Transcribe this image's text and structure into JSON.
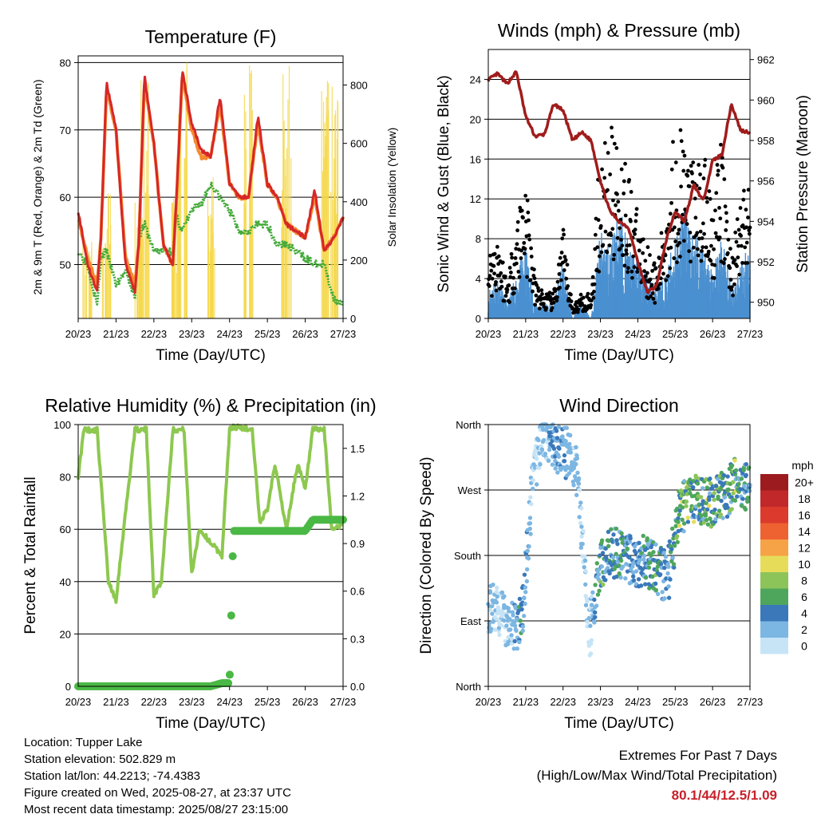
{
  "x_ticks": [
    "20/23",
    "21/23",
    "22/23",
    "23/23",
    "24/23",
    "25/23",
    "26/23",
    "27/23"
  ],
  "x_label": "Time (Day/UTC)",
  "panels": {
    "temperature": {
      "title": "Temperature (F)",
      "left_label": "2m & 9m T (Red, Orange) & 2m Td (Green)",
      "right_label": "Solar Insolation (Yellow)",
      "left_ticks": [
        "50",
        "60",
        "70",
        "80"
      ],
      "right_ticks": [
        "0",
        "200",
        "400",
        "600",
        "800"
      ]
    },
    "winds": {
      "title": "Winds (mph) & Pressure (mb)",
      "left_label": "Sonic Wind & Gust (Blue, Black)",
      "right_label": "Station Pressure (Maroon)",
      "left_ticks": [
        "0",
        "4",
        "8",
        "12",
        "16",
        "20",
        "24"
      ],
      "right_ticks": [
        "950",
        "952",
        "954",
        "956",
        "958",
        "960",
        "962"
      ]
    },
    "humidity": {
      "title": "Relative Humidity (%) & Precipitation (in)",
      "left_label": "Percent & Total Rainfall",
      "left_ticks": [
        "0",
        "20",
        "40",
        "60",
        "80",
        "100"
      ],
      "right_ticks": [
        "0.0",
        "0.3",
        "0.6",
        "0.9",
        "1.2",
        "1.5"
      ]
    },
    "direction": {
      "title": "Wind Direction",
      "left_label": "Direction (Colored By Speed)",
      "left_ticks": [
        "North",
        "East",
        "South",
        "West",
        "North"
      ],
      "legend_title": "mph",
      "legend_labels": [
        "20+",
        "18",
        "16",
        "14",
        "12",
        "10",
        "8",
        "6",
        "4",
        "2",
        "0"
      ],
      "legend_colors": [
        "#9c1b1f",
        "#c0282a",
        "#db3a2c",
        "#ee6231",
        "#f6a246",
        "#e6dc5a",
        "#8cc45a",
        "#4ea65c",
        "#3a78ba",
        "#7cb6e2",
        "#c6e4f6"
      ]
    }
  },
  "info": {
    "location": "Location: Tupper Lake",
    "elevation": "Station elevation: 502.829 m",
    "latlon": "Station lat/lon: 44.2213; -74.4383",
    "created": "Figure created on Wed, 2025-08-27, at 23:37 UTC",
    "recent": "Most recent data timestamp: 2025/08/27 23:15:00"
  },
  "extremes": {
    "line1": "Extremes For Past 7 Days",
    "line2": "(High/Low/Max Wind/Total Precipitation)",
    "values": "80.1/44/12.5/1.09"
  },
  "chart_data": [
    {
      "type": "line",
      "title": "Temperature (F)",
      "xlabel": "Time (Day/UTC)",
      "ylabel": "2m & 9m T (Red, Orange) & 2m Td (Green)",
      "ylabel_right": "Solar Insolation (Yellow)",
      "x": [
        20.0,
        20.25,
        20.5,
        20.6,
        20.75,
        21.0,
        21.25,
        21.5,
        21.6,
        21.75,
        22.0,
        22.25,
        22.5,
        22.6,
        22.75,
        23.0,
        23.25,
        23.5,
        23.75,
        24.0,
        24.25,
        24.5,
        24.75,
        25.0,
        25.25,
        25.5,
        25.75,
        26.0,
        26.25,
        26.5,
        26.75,
        27.0
      ],
      "ylim": [
        42,
        81
      ],
      "ylim_right": [
        0,
        900
      ],
      "series": [
        {
          "name": "2m T",
          "color": "#d62728",
          "values": [
            58,
            50,
            46,
            54,
            77,
            70,
            50,
            46,
            53,
            78,
            68,
            53,
            50,
            60,
            79,
            71,
            67,
            66,
            75,
            62,
            60,
            60,
            72,
            62,
            60,
            56,
            55,
            54,
            61,
            52,
            54,
            57
          ]
        },
        {
          "name": "9m T",
          "color": "#f58a2e",
          "values": [
            57,
            51,
            47,
            54,
            76,
            70,
            51,
            47,
            53,
            77,
            68,
            53,
            50,
            60,
            78,
            70,
            66,
            66,
            74,
            62,
            60,
            60,
            71,
            62,
            60,
            56,
            55,
            54,
            60,
            52,
            54,
            57
          ]
        },
        {
          "name": "2m Td",
          "color": "#44aa3a",
          "values": [
            52,
            50,
            44,
            51,
            52,
            47,
            49,
            45,
            54,
            56,
            52,
            52,
            52,
            57,
            55,
            58,
            59,
            62,
            60,
            58,
            55,
            55,
            56,
            56,
            53,
            53,
            52,
            51,
            50,
            50,
            45,
            44
          ]
        },
        {
          "name": "Solar Insolation",
          "color": "#f5d84a",
          "axis": "right",
          "values": [
            0,
            300,
            0,
            0,
            450,
            0,
            0,
            0,
            450,
            860,
            0,
            0,
            0,
            420,
            880,
            0,
            0,
            500,
            0,
            0,
            0,
            900,
            0,
            0,
            0,
            880,
            0,
            0,
            0,
            820,
            860,
            0
          ]
        }
      ]
    },
    {
      "type": "line",
      "title": "Winds (mph) & Pressure (mb)",
      "xlabel": "Time (Day/UTC)",
      "ylabel": "Sonic Wind & Gust (Blue, Black)",
      "ylabel_right": "Station Pressure (Maroon)",
      "x": [
        20.0,
        20.25,
        20.5,
        20.75,
        21.0,
        21.25,
        21.5,
        21.75,
        22.0,
        22.25,
        22.5,
        22.75,
        23.0,
        23.25,
        23.5,
        23.75,
        24.0,
        24.25,
        24.5,
        24.75,
        25.0,
        25.25,
        25.5,
        25.75,
        26.0,
        26.25,
        26.5,
        26.75,
        27.0
      ],
      "ylim": [
        0,
        27
      ],
      "ylim_right": [
        949.2,
        962.5
      ],
      "series": [
        {
          "name": "Sonic Wind",
          "color": "#4a90d0",
          "values": [
            2,
            3,
            1,
            3,
            5,
            1,
            1,
            1,
            4,
            0,
            1,
            0,
            6,
            5,
            8,
            5,
            4,
            3,
            2,
            3,
            6,
            8,
            6,
            5,
            3,
            6,
            2,
            4,
            5
          ]
        },
        {
          "name": "Gust",
          "color": "#000000",
          "values": [
            5,
            7,
            3,
            8,
            12,
            3,
            2,
            2,
            7,
            1,
            2,
            2,
            14,
            15,
            14,
            12,
            8,
            6,
            4,
            9,
            16,
            14,
            12,
            13,
            10,
            14,
            5,
            10,
            11
          ]
        },
        {
          "name": "Station Pressure",
          "color": "#a01c1c",
          "values": [
            961.0,
            961.3,
            960.8,
            961.4,
            959.2,
            958.2,
            958.3,
            959.8,
            959.5,
            958.0,
            958.4,
            958.0,
            956.0,
            954.5,
            954.0,
            953.7,
            952.0,
            950.5,
            950.8,
            953.0,
            954.5,
            954.0,
            955.8,
            955.0,
            957.0,
            957.3,
            959.8,
            958.5,
            958.4
          ]
        }
      ]
    },
    {
      "type": "line",
      "title": "Relative Humidity (%) & Precipitation (in)",
      "xlabel": "Time (Day/UTC)",
      "ylabel": "Percent & Total Rainfall",
      "x": [
        20.0,
        20.15,
        20.5,
        20.8,
        21.0,
        21.2,
        21.5,
        21.8,
        22.0,
        22.2,
        22.5,
        22.8,
        23.0,
        23.2,
        23.5,
        23.8,
        24.0,
        24.1,
        24.3,
        24.6,
        24.8,
        25.0,
        25.2,
        25.5,
        25.8,
        26.0,
        26.2,
        26.5,
        26.7,
        27.0
      ],
      "ylim": [
        0,
        100
      ],
      "ylim_right": [
        0,
        1.65
      ],
      "series": [
        {
          "name": "Relative Humidity",
          "color": "#8dc84f",
          "values": [
            80,
            98,
            98,
            40,
            33,
            60,
            98,
            98,
            35,
            40,
            98,
            98,
            43,
            60,
            55,
            50,
            98,
            99,
            99,
            98,
            62,
            68,
            85,
            60,
            85,
            75,
            98,
            98,
            60,
            62
          ]
        },
        {
          "name": "Total Rainfall",
          "color": "#4ab844",
          "axis": "right",
          "values": [
            0,
            0,
            0,
            0,
            0,
            0,
            0,
            0,
            0,
            0,
            0,
            0,
            0,
            0,
            0,
            0.02,
            0.02,
            0.98,
            0.98,
            0.98,
            0.98,
            0.98,
            0.98,
            0.98,
            0.98,
            0.98,
            1.05,
            1.05,
            1.05,
            1.05
          ]
        }
      ]
    },
    {
      "type": "scatter",
      "title": "Wind Direction",
      "xlabel": "Time (Day/UTC)",
      "ylabel": "Direction (Colored By Speed)",
      "y_categories": [
        "North",
        "East",
        "South",
        "West",
        "North"
      ],
      "ylim": [
        0,
        360
      ],
      "x": [
        20.0,
        20.3,
        20.6,
        20.9,
        21.2,
        21.5,
        21.8,
        22.1,
        22.4,
        22.7,
        23.0,
        23.3,
        23.6,
        23.9,
        24.2,
        24.5,
        24.8,
        25.1,
        25.4,
        25.7,
        26.0,
        26.3,
        26.6,
        26.9
      ],
      "series": [
        {
          "name": "Direction",
          "values": [
            110,
            100,
            80,
            90,
            290,
            350,
            330,
            320,
            290,
            70,
            170,
            185,
            180,
            170,
            175,
            160,
            150,
            240,
            260,
            250,
            255,
            260,
            280,
            275
          ]
        },
        {
          "name": "Speed",
          "values": [
            2,
            1,
            2,
            5,
            1,
            2,
            4,
            3,
            2,
            1,
            7,
            5,
            6,
            4,
            5,
            6,
            3,
            9,
            8,
            7,
            9,
            6,
            8,
            5
          ]
        }
      ]
    }
  ]
}
